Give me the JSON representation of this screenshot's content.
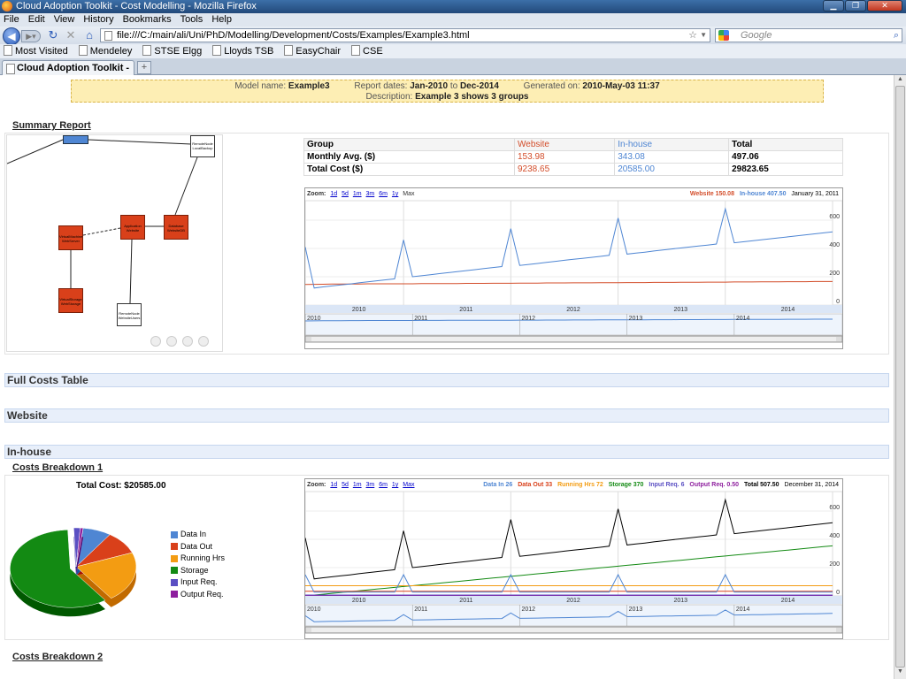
{
  "window": {
    "title": "Cloud Adoption Toolkit - Cost Modelling - Mozilla Firefox"
  },
  "menu": [
    "File",
    "Edit",
    "View",
    "History",
    "Bookmarks",
    "Tools",
    "Help"
  ],
  "nav": {
    "url": "file:///C:/main/ali/Uni/PhD/Modelling/Development/Costs/Examples/Example3.html",
    "search_placeholder": "Google"
  },
  "bookmarks": [
    "Most Visited",
    "Mendeley",
    "STSE Elgg",
    "Lloyds TSB",
    "EasyChair",
    "CSE"
  ],
  "tab": {
    "label": "Cloud Adoption Toolkit - Cos..."
  },
  "info": {
    "model_label": "Model name:",
    "model_value": "Example3",
    "dates_label": "Report dates:",
    "dates_from": "Jan-2010",
    "dates_to_word": "to",
    "dates_to": "Dec-2014",
    "generated_label": "Generated on:",
    "generated_value": "2010-May-03 11:37",
    "desc_label": "Description:",
    "desc_value": "Example 3 shows 3 groups"
  },
  "summary": {
    "heading": "Summary Report",
    "table": {
      "header": [
        "Group",
        "Website",
        "In-house",
        "Total"
      ],
      "rows": [
        [
          "Monthly Avg. ($)",
          "153.98",
          "343.08",
          "497.06"
        ],
        [
          "Total Cost ($)",
          "9238.65",
          "20585.00",
          "29823.65"
        ]
      ]
    },
    "diagram_nodes": [
      {
        "label": "RemoteNode LocalBackup",
        "color": "#ffffff"
      },
      {
        "label": "VirtualMachine WebServer",
        "color": "#d9401a"
      },
      {
        "label": "Application Website",
        "color": "#d9401a"
      },
      {
        "label": "Database WebsiteDB",
        "color": "#d9401a"
      },
      {
        "label": "VirtualStorage WebStorage",
        "color": "#d9401a"
      },
      {
        "label": "RemoteNode WebsiteUsers",
        "color": "#ffffff"
      }
    ]
  },
  "chart1": {
    "zoom_label": "Zoom:",
    "zoom": [
      "1d",
      "5d",
      "1m",
      "3m",
      "6m",
      "1y"
    ],
    "zoom_current": "Max",
    "legend": [
      {
        "text": "Website 150.08",
        "color": "#d34d2a"
      },
      {
        "text": "In-house 407.50",
        "color": "#4f86d3"
      }
    ],
    "date": "January 31, 2011"
  },
  "sections": [
    "Full Costs Table",
    "Website",
    "In-house"
  ],
  "breakdown1": {
    "heading": "Costs Breakdown 1",
    "pie_title": "Total Cost: $20585.00",
    "legend": [
      {
        "text": "Data In",
        "color": "#4f86d3"
      },
      {
        "text": "Data Out",
        "color": "#d9401a"
      },
      {
        "text": "Running Hrs",
        "color": "#f39c12"
      },
      {
        "text": "Storage",
        "color": "#138a13"
      },
      {
        "text": "Input Req.",
        "color": "#5a4fc3"
      },
      {
        "text": "Output Req.",
        "color": "#8e1f9e"
      }
    ]
  },
  "chart2": {
    "zoom_label": "Zoom:",
    "zoom": [
      "1d",
      "5d",
      "1m",
      "3m",
      "6m",
      "1y"
    ],
    "zoom_current": "Max",
    "legend": [
      {
        "text": "Data In 26",
        "color": "#4f86d3"
      },
      {
        "text": "Data Out 33",
        "color": "#d9401a"
      },
      {
        "text": "Running Hrs 72",
        "color": "#f39c12"
      },
      {
        "text": "Storage 370",
        "color": "#138a13"
      },
      {
        "text": "Input Req. 6",
        "color": "#5a4fc3"
      },
      {
        "text": "Output Req. 0.50",
        "color": "#8e1f9e"
      },
      {
        "text": "Total 507.50",
        "color": "#000000"
      }
    ],
    "date": "December 31, 2014"
  },
  "breakdown2": {
    "heading": "Costs Breakdown 2"
  },
  "chart_data": [
    {
      "type": "line",
      "title": "",
      "xlabel": "",
      "ylabel": "",
      "x_ticks": [
        "2010",
        "2011",
        "2012",
        "2013",
        "2014"
      ],
      "y_ticks": [
        0,
        200,
        400,
        600
      ],
      "ylim": [
        0,
        700
      ],
      "grid": true,
      "legend": "top-right",
      "series": [
        {
          "name": "Website",
          "color": "#d34d2a",
          "monthly_approx": [
            145,
            146,
            147,
            148,
            148,
            149,
            149,
            150,
            150,
            150,
            150,
            150,
            150,
            151,
            151,
            151,
            152,
            152,
            153,
            153,
            153,
            154,
            154,
            154,
            155,
            155,
            155,
            156,
            156,
            156,
            157,
            157,
            157,
            158,
            158,
            158,
            159,
            159,
            159,
            160,
            160,
            160,
            161,
            161,
            161,
            162,
            162,
            162,
            163,
            163,
            163,
            164,
            164,
            164,
            165,
            165,
            165,
            166,
            166,
            166
          ]
        },
        {
          "name": "In-house",
          "color": "#4f86d3",
          "monthly_approx": [
            410,
            120,
            128,
            135,
            142,
            149,
            157,
            164,
            171,
            178,
            185,
            460,
            200,
            207,
            214,
            222,
            229,
            236,
            243,
            250,
            258,
            265,
            272,
            540,
            280,
            287,
            294,
            302,
            309,
            316,
            323,
            330,
            337,
            344,
            351,
            615,
            360,
            367,
            374,
            382,
            389,
            396,
            403,
            410,
            417,
            424,
            431,
            680,
            440,
            447,
            454,
            461,
            468,
            475,
            482,
            489,
            496,
            503,
            510,
            517
          ]
        }
      ]
    },
    {
      "type": "line",
      "title": "",
      "xlabel": "",
      "ylabel": "",
      "x_ticks": [
        "2010",
        "2011",
        "2012",
        "2013",
        "2014"
      ],
      "y_ticks": [
        0,
        200,
        400,
        600
      ],
      "ylim": [
        0,
        700
      ],
      "grid": true,
      "legend": "top-right",
      "series": [
        {
          "name": "Total",
          "color": "#000000",
          "monthly_approx": [
            410,
            120,
            128,
            135,
            142,
            149,
            157,
            164,
            171,
            178,
            185,
            460,
            200,
            207,
            214,
            222,
            229,
            236,
            243,
            250,
            258,
            265,
            272,
            540,
            280,
            287,
            294,
            302,
            309,
            316,
            323,
            330,
            337,
            344,
            351,
            615,
            360,
            367,
            374,
            382,
            389,
            396,
            403,
            410,
            417,
            424,
            431,
            680,
            440,
            447,
            454,
            461,
            468,
            475,
            482,
            489,
            496,
            503,
            510,
            517
          ]
        },
        {
          "name": "Storage",
          "color": "#138a13",
          "monthly_approx": [
            0,
            6,
            12,
            18,
            24,
            30,
            36,
            42,
            48,
            54,
            60,
            66,
            72,
            78,
            84,
            90,
            96,
            102,
            108,
            114,
            120,
            126,
            132,
            138,
            144,
            150,
            156,
            162,
            168,
            174,
            180,
            186,
            192,
            198,
            204,
            210,
            216,
            222,
            228,
            234,
            240,
            246,
            252,
            258,
            264,
            270,
            276,
            282,
            288,
            294,
            300,
            306,
            312,
            318,
            324,
            330,
            336,
            342,
            348,
            354
          ]
        },
        {
          "name": "Running Hrs",
          "color": "#f39c12",
          "monthly_approx": [
            72,
            72,
            72,
            72,
            72,
            72,
            72,
            72,
            72,
            72,
            72,
            72,
            72,
            72,
            72,
            72,
            72,
            72,
            72,
            72,
            72,
            72,
            72,
            72,
            72,
            72,
            72,
            72,
            72,
            72,
            72,
            72,
            72,
            72,
            72,
            72,
            72,
            72,
            72,
            72,
            72,
            72,
            72,
            72,
            72,
            72,
            72,
            72,
            72,
            72,
            72,
            72,
            72,
            72,
            72,
            72,
            72,
            72,
            72,
            72
          ]
        },
        {
          "name": "Data Out",
          "color": "#d9401a",
          "monthly_approx": [
            33,
            33,
            33,
            33,
            33,
            33,
            33,
            33,
            33,
            33,
            33,
            33,
            33,
            33,
            33,
            33,
            33,
            33,
            33,
            33,
            33,
            33,
            33,
            33,
            33,
            33,
            33,
            33,
            33,
            33,
            33,
            33,
            33,
            33,
            33,
            33,
            33,
            33,
            33,
            33,
            33,
            33,
            33,
            33,
            33,
            33,
            33,
            33,
            33,
            33,
            33,
            33,
            33,
            33,
            33,
            33,
            33,
            33,
            33,
            33
          ]
        },
        {
          "name": "Data In",
          "color": "#4f86d3",
          "monthly_approx": [
            150,
            26,
            26,
            26,
            26,
            26,
            26,
            26,
            26,
            26,
            26,
            150,
            26,
            26,
            26,
            26,
            26,
            26,
            26,
            26,
            26,
            26,
            26,
            150,
            26,
            26,
            26,
            26,
            26,
            26,
            26,
            26,
            26,
            26,
            26,
            150,
            26,
            26,
            26,
            26,
            26,
            26,
            26,
            26,
            26,
            26,
            26,
            150,
            26,
            26,
            26,
            26,
            26,
            26,
            26,
            26,
            26,
            26,
            26,
            26
          ]
        },
        {
          "name": "Input Req.",
          "color": "#5a4fc3",
          "monthly_approx": [
            6,
            6,
            6,
            6,
            6,
            6,
            6,
            6,
            6,
            6,
            6,
            6,
            6,
            6,
            6,
            6,
            6,
            6,
            6,
            6,
            6,
            6,
            6,
            6,
            6,
            6,
            6,
            6,
            6,
            6,
            6,
            6,
            6,
            6,
            6,
            6,
            6,
            6,
            6,
            6,
            6,
            6,
            6,
            6,
            6,
            6,
            6,
            6,
            6,
            6,
            6,
            6,
            6,
            6,
            6,
            6,
            6,
            6,
            6,
            6
          ]
        },
        {
          "name": "Output Req.",
          "color": "#8e1f9e",
          "monthly_approx": [
            0.5,
            0.5,
            0.5,
            0.5,
            0.5,
            0.5,
            0.5,
            0.5,
            0.5,
            0.5,
            0.5,
            0.5,
            0.5,
            0.5,
            0.5,
            0.5,
            0.5,
            0.5,
            0.5,
            0.5,
            0.5,
            0.5,
            0.5,
            0.5,
            0.5,
            0.5,
            0.5,
            0.5,
            0.5,
            0.5,
            0.5,
            0.5,
            0.5,
            0.5,
            0.5,
            0.5,
            0.5,
            0.5,
            0.5,
            0.5,
            0.5,
            0.5,
            0.5,
            0.5,
            0.5,
            0.5,
            0.5,
            0.5,
            0.5,
            0.5,
            0.5,
            0.5,
            0.5,
            0.5,
            0.5,
            0.5,
            0.5,
            0.5,
            0.5,
            0.5
          ]
        }
      ]
    },
    {
      "type": "pie",
      "title": "Total Cost: $20585.00",
      "categories": [
        "Data In",
        "Data Out",
        "Running Hrs",
        "Storage",
        "Input Req.",
        "Output Req."
      ],
      "values": [
        1560,
        1980,
        4320,
        12200,
        360,
        165
      ],
      "colors": [
        "#4f86d3",
        "#d9401a",
        "#f39c12",
        "#138a13",
        "#5a4fc3",
        "#8e1f9e"
      ]
    }
  ]
}
